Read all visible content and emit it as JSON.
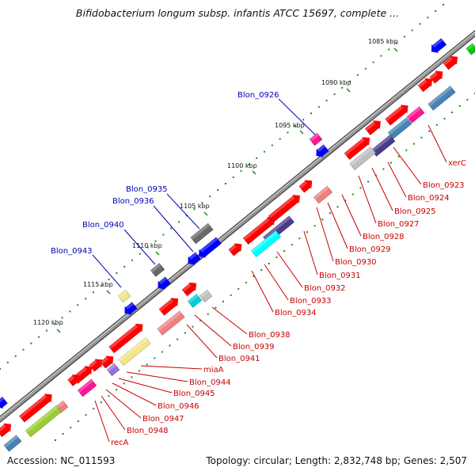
{
  "title": "Bifidobacterium longum subsp. infantis ATCC 15697, complete ...",
  "footer": {
    "accession": "Accession: NC_011593",
    "summary": "Topology: circular; Length: 2,832,748 bp; Genes: 2,507"
  },
  "colors": {
    "backbone": "#808080",
    "scale_dots": "#1a8a1a",
    "label_top": "#0000b4",
    "label_bottom": "#c80000"
  },
  "scale": [
    "1085 kbp",
    "1090 kbp",
    "1095 kbp",
    "1100 kbp",
    "1105 kbp",
    "1110 kbp",
    "1115 kbp",
    "1120 kbp"
  ],
  "labels_top": [
    "Blon_0926",
    "Blon_0935",
    "Blon_0936",
    "Blon_0940",
    "Blon_0943"
  ],
  "labels_bottom": [
    "xerC",
    "Blon_0923",
    "Blon_0924",
    "Blon_0925",
    "Blon_0927",
    "Blon_0928",
    "Blon_0929",
    "Blon_0930",
    "Blon_0931",
    "Blon_0932",
    "Blon_0933",
    "Blon_0934",
    "Blon_0938",
    "Blon_0939",
    "Blon_0941",
    "miaA",
    "Blon_0944",
    "Blon_0945",
    "Blon_0946",
    "Blon_0947",
    "Blon_0948",
    "recA"
  ]
}
